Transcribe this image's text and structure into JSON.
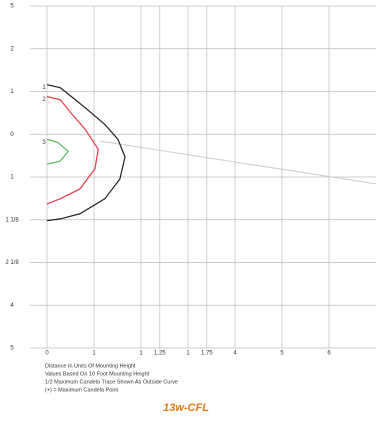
{
  "chart_data": {
    "type": "line",
    "title": "13w-CFL",
    "notes": [
      "Distance In Units Of Mounting Height",
      "Values Based On 10 Foot Mounting Height",
      "1/2 Maximum Candela Trace Shown As Outside Curve",
      "(+) = Maximum Candela Point"
    ],
    "xlim": [
      0,
      7
    ],
    "ylim": [
      -5,
      3
    ],
    "xticks": [
      0,
      1,
      {
        "value": 2,
        "label": "1"
      },
      {
        "value": 2.4,
        "label": "1.25"
      },
      {
        "value": 3,
        "label": "1"
      },
      {
        "value": 3.4,
        "label": "1.75"
      },
      4,
      5,
      6
    ],
    "yticks": [
      {
        "value": 3,
        "label": "5"
      },
      2,
      1,
      0,
      {
        "value": -1,
        "label": "1"
      },
      {
        "value": -2,
        "label": "1 1/8"
      },
      {
        "value": -3,
        "label": "2 1/8"
      },
      {
        "value": -4,
        "label": "4"
      },
      {
        "value": -5,
        "label": "5"
      }
    ],
    "grid": true,
    "series": [
      {
        "name": "1",
        "color": "#222222",
        "x": [
          0,
          0.28,
          0.6,
          0.91,
          1.23,
          1.51,
          1.66,
          1.55,
          1.23,
          0.7,
          0.28,
          0
        ],
        "values": [
          1.16,
          1.09,
          0.81,
          0.53,
          0.23,
          -0.12,
          -0.53,
          -1.05,
          -1.51,
          -1.86,
          -1.98,
          -2.02
        ]
      },
      {
        "name": "2",
        "color": "#e8384a",
        "x": [
          0,
          0.28,
          0.53,
          0.81,
          1.09,
          1.02,
          0.7,
          0.28,
          0
        ],
        "values": [
          0.88,
          0.81,
          0.47,
          0.12,
          -0.35,
          -0.81,
          -1.28,
          -1.51,
          -1.63
        ]
      },
      {
        "name": "3",
        "color": "#5cb85c",
        "x": [
          0,
          0.23,
          0.45,
          0.28,
          0
        ],
        "values": [
          -0.12,
          -0.19,
          -0.4,
          -0.63,
          -0.7
        ]
      }
    ],
    "trace": {
      "color": "#cccccc",
      "x": [
        1.13,
        7
      ],
      "values": [
        -0.16,
        -1.16
      ]
    }
  }
}
